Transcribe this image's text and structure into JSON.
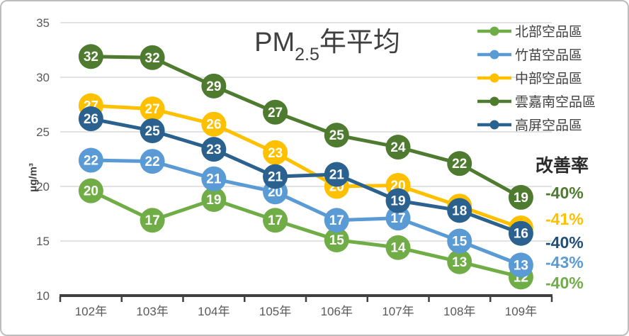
{
  "title": {
    "prefix": "PM",
    "subscript": "2.5",
    "suffix": "年平均"
  },
  "improvement_header": "改善率",
  "chart_data": {
    "type": "line",
    "categories": [
      "102年",
      "103年",
      "104年",
      "105年",
      "106年",
      "107年",
      "108年",
      "109年"
    ],
    "ylabel": "μg/m³",
    "y_ticks": [
      10,
      15,
      20,
      25,
      30,
      35
    ],
    "ylim": [
      10,
      35
    ],
    "grid": true,
    "legend_position": "top-right",
    "series": [
      {
        "id": "north",
        "name": "北部空品區",
        "color": "#70AD47",
        "values": [
          19.6,
          16.9,
          18.8,
          16.9,
          15.1,
          14.4,
          13.1,
          11.7
        ],
        "labels": [
          20,
          17,
          19,
          17,
          15,
          14,
          13,
          12
        ],
        "improvement": "-40%"
      },
      {
        "id": "zhumiao",
        "name": "竹苗空品區",
        "color": "#5B9BD5",
        "values": [
          22.4,
          22.3,
          20.7,
          19.5,
          16.9,
          17.1,
          15.0,
          12.8
        ],
        "labels": [
          22,
          22,
          21,
          20,
          17,
          17,
          15,
          13
        ],
        "improvement": "-43%"
      },
      {
        "id": "central",
        "name": "中部空品區",
        "color": "#FFC000",
        "values": [
          27.4,
          27.1,
          25.7,
          23.1,
          20.0,
          20.1,
          18.2,
          16.2
        ],
        "labels": [
          27,
          27,
          26,
          23,
          20,
          20,
          18,
          16
        ],
        "hidden_label_indices": [
          6,
          7
        ],
        "improvement": "-41%"
      },
      {
        "id": "yunjianan",
        "name": "雲嘉南空品區",
        "color": "#4E7B2F",
        "values": [
          31.9,
          31.8,
          29.2,
          26.8,
          24.7,
          23.6,
          22.1,
          19.0
        ],
        "labels": [
          32,
          32,
          29,
          27,
          25,
          24,
          22,
          19
        ],
        "improvement": "-40%"
      },
      {
        "id": "kaoping",
        "name": "高屏空品區",
        "color": "#2B618E",
        "values": [
          26.2,
          25.1,
          23.4,
          20.9,
          21.1,
          18.7,
          17.8,
          15.7
        ],
        "labels": [
          26,
          25,
          23,
          21,
          21,
          19,
          18,
          16
        ],
        "improvement": "-40%"
      }
    ],
    "improvement_column": [
      {
        "series": "yunjianan",
        "label": "-40%",
        "color": "#4E7B2F"
      },
      {
        "series": "central",
        "label": "-41%",
        "color": "#FFC000"
      },
      {
        "series": "kaoping",
        "label": "-40%",
        "color": "#1F4E79"
      },
      {
        "series": "zhumiao",
        "label": "-43%",
        "color": "#5B9BD5"
      },
      {
        "series": "north",
        "label": "-40%",
        "color": "#70AD47"
      }
    ]
  }
}
